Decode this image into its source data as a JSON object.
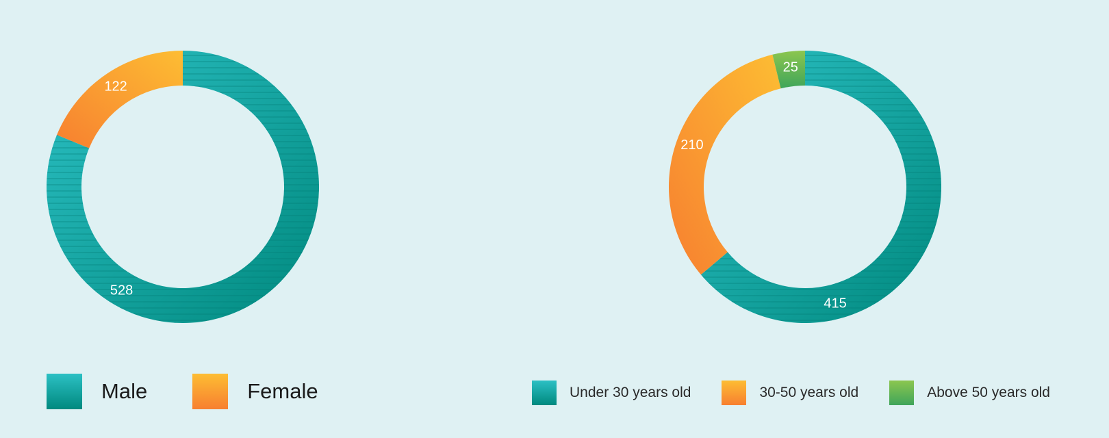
{
  "chart_data": [
    {
      "type": "pie",
      "categories": [
        "Male",
        "Female"
      ],
      "values": [
        528,
        122
      ],
      "colors": [
        "#0ea5a4",
        "#fb9a2e"
      ],
      "legend_position": "bottom-left"
    },
    {
      "type": "pie",
      "categories": [
        "Under 30 years old",
        "30-50 years old",
        "Above 50 years old"
      ],
      "values": [
        415,
        210,
        25
      ],
      "colors": [
        "#0ea5a4",
        "#fb9a2e",
        "#6bbf4e"
      ],
      "legend_position": "bottom-right"
    }
  ]
}
